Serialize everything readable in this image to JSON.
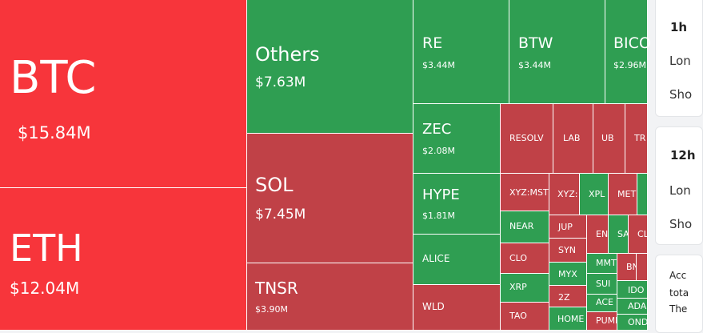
{
  "treemap": {
    "tiles": [
      {
        "sym": "BTC",
        "val": "$15.84M",
        "color": "rr"
      },
      {
        "sym": "ETH",
        "val": "$12.04M",
        "color": "rr"
      },
      {
        "sym": "Others",
        "val": "$7.63M",
        "color": "g"
      },
      {
        "sym": "SOL",
        "val": "$7.45M",
        "color": "r"
      },
      {
        "sym": "TNSR",
        "val": "$3.90M",
        "color": "r"
      },
      {
        "sym": "RE",
        "val": "$3.44M",
        "color": "g"
      },
      {
        "sym": "BTW",
        "val": "$3.44M",
        "color": "g"
      },
      {
        "sym": "BICO",
        "val": "$2.96M",
        "color": "g"
      },
      {
        "sym": "ZEC",
        "val": "$2.08M",
        "color": "g"
      },
      {
        "sym": "HYPE",
        "val": "$1.81M",
        "color": "g"
      },
      {
        "sym": "ALICE",
        "val": "",
        "color": "g"
      },
      {
        "sym": "WLD",
        "val": "",
        "color": "r"
      },
      {
        "sym": "RESOLV",
        "val": "",
        "color": "r"
      },
      {
        "sym": "LAB",
        "val": "",
        "color": "r"
      },
      {
        "sym": "UB",
        "val": "",
        "color": "r"
      },
      {
        "sym": "TR",
        "val": "",
        "color": "r"
      },
      {
        "sym": "XYZ:MST",
        "val": "",
        "color": "r"
      },
      {
        "sym": "XYZ:",
        "val": "",
        "color": "r"
      },
      {
        "sym": "XPL",
        "val": "",
        "color": "g"
      },
      {
        "sym": "MET",
        "val": "",
        "color": "r"
      },
      {
        "sym": "",
        "val": "",
        "color": "g"
      },
      {
        "sym": "NEAR",
        "val": "",
        "color": "g"
      },
      {
        "sym": "JUP",
        "val": "",
        "color": "r"
      },
      {
        "sym": "EN",
        "val": "",
        "color": "r"
      },
      {
        "sym": "SA",
        "val": "",
        "color": "g"
      },
      {
        "sym": "CL",
        "val": "",
        "color": "r"
      },
      {
        "sym": "CLO",
        "val": "",
        "color": "r"
      },
      {
        "sym": "SYN",
        "val": "",
        "color": "r"
      },
      {
        "sym": "MMT",
        "val": "",
        "color": "g"
      },
      {
        "sym": "BN",
        "val": "",
        "color": "r"
      },
      {
        "sym": "",
        "val": "",
        "color": "r"
      },
      {
        "sym": "MYX",
        "val": "",
        "color": "g"
      },
      {
        "sym": "SUI",
        "val": "",
        "color": "g"
      },
      {
        "sym": "IDO",
        "val": "",
        "color": "g"
      },
      {
        "sym": "XRP",
        "val": "",
        "color": "g"
      },
      {
        "sym": "2Z",
        "val": "",
        "color": "r"
      },
      {
        "sym": "ACE",
        "val": "",
        "color": "g"
      },
      {
        "sym": "ADA",
        "val": "",
        "color": "g"
      },
      {
        "sym": "TAO",
        "val": "",
        "color": "r"
      },
      {
        "sym": "HOME",
        "val": "",
        "color": "g"
      },
      {
        "sym": "PUMP",
        "val": "",
        "color": "r"
      },
      {
        "sym": "OND",
        "val": "",
        "color": "g"
      }
    ]
  },
  "side": {
    "card1": {
      "title": "1h",
      "long": "Lon",
      "short": "Sho"
    },
    "card2": {
      "title": "12h",
      "long": "Lon",
      "short": "Sho"
    },
    "card3": {
      "line1": "Acc",
      "line2": "tota",
      "line3": "The"
    }
  }
}
